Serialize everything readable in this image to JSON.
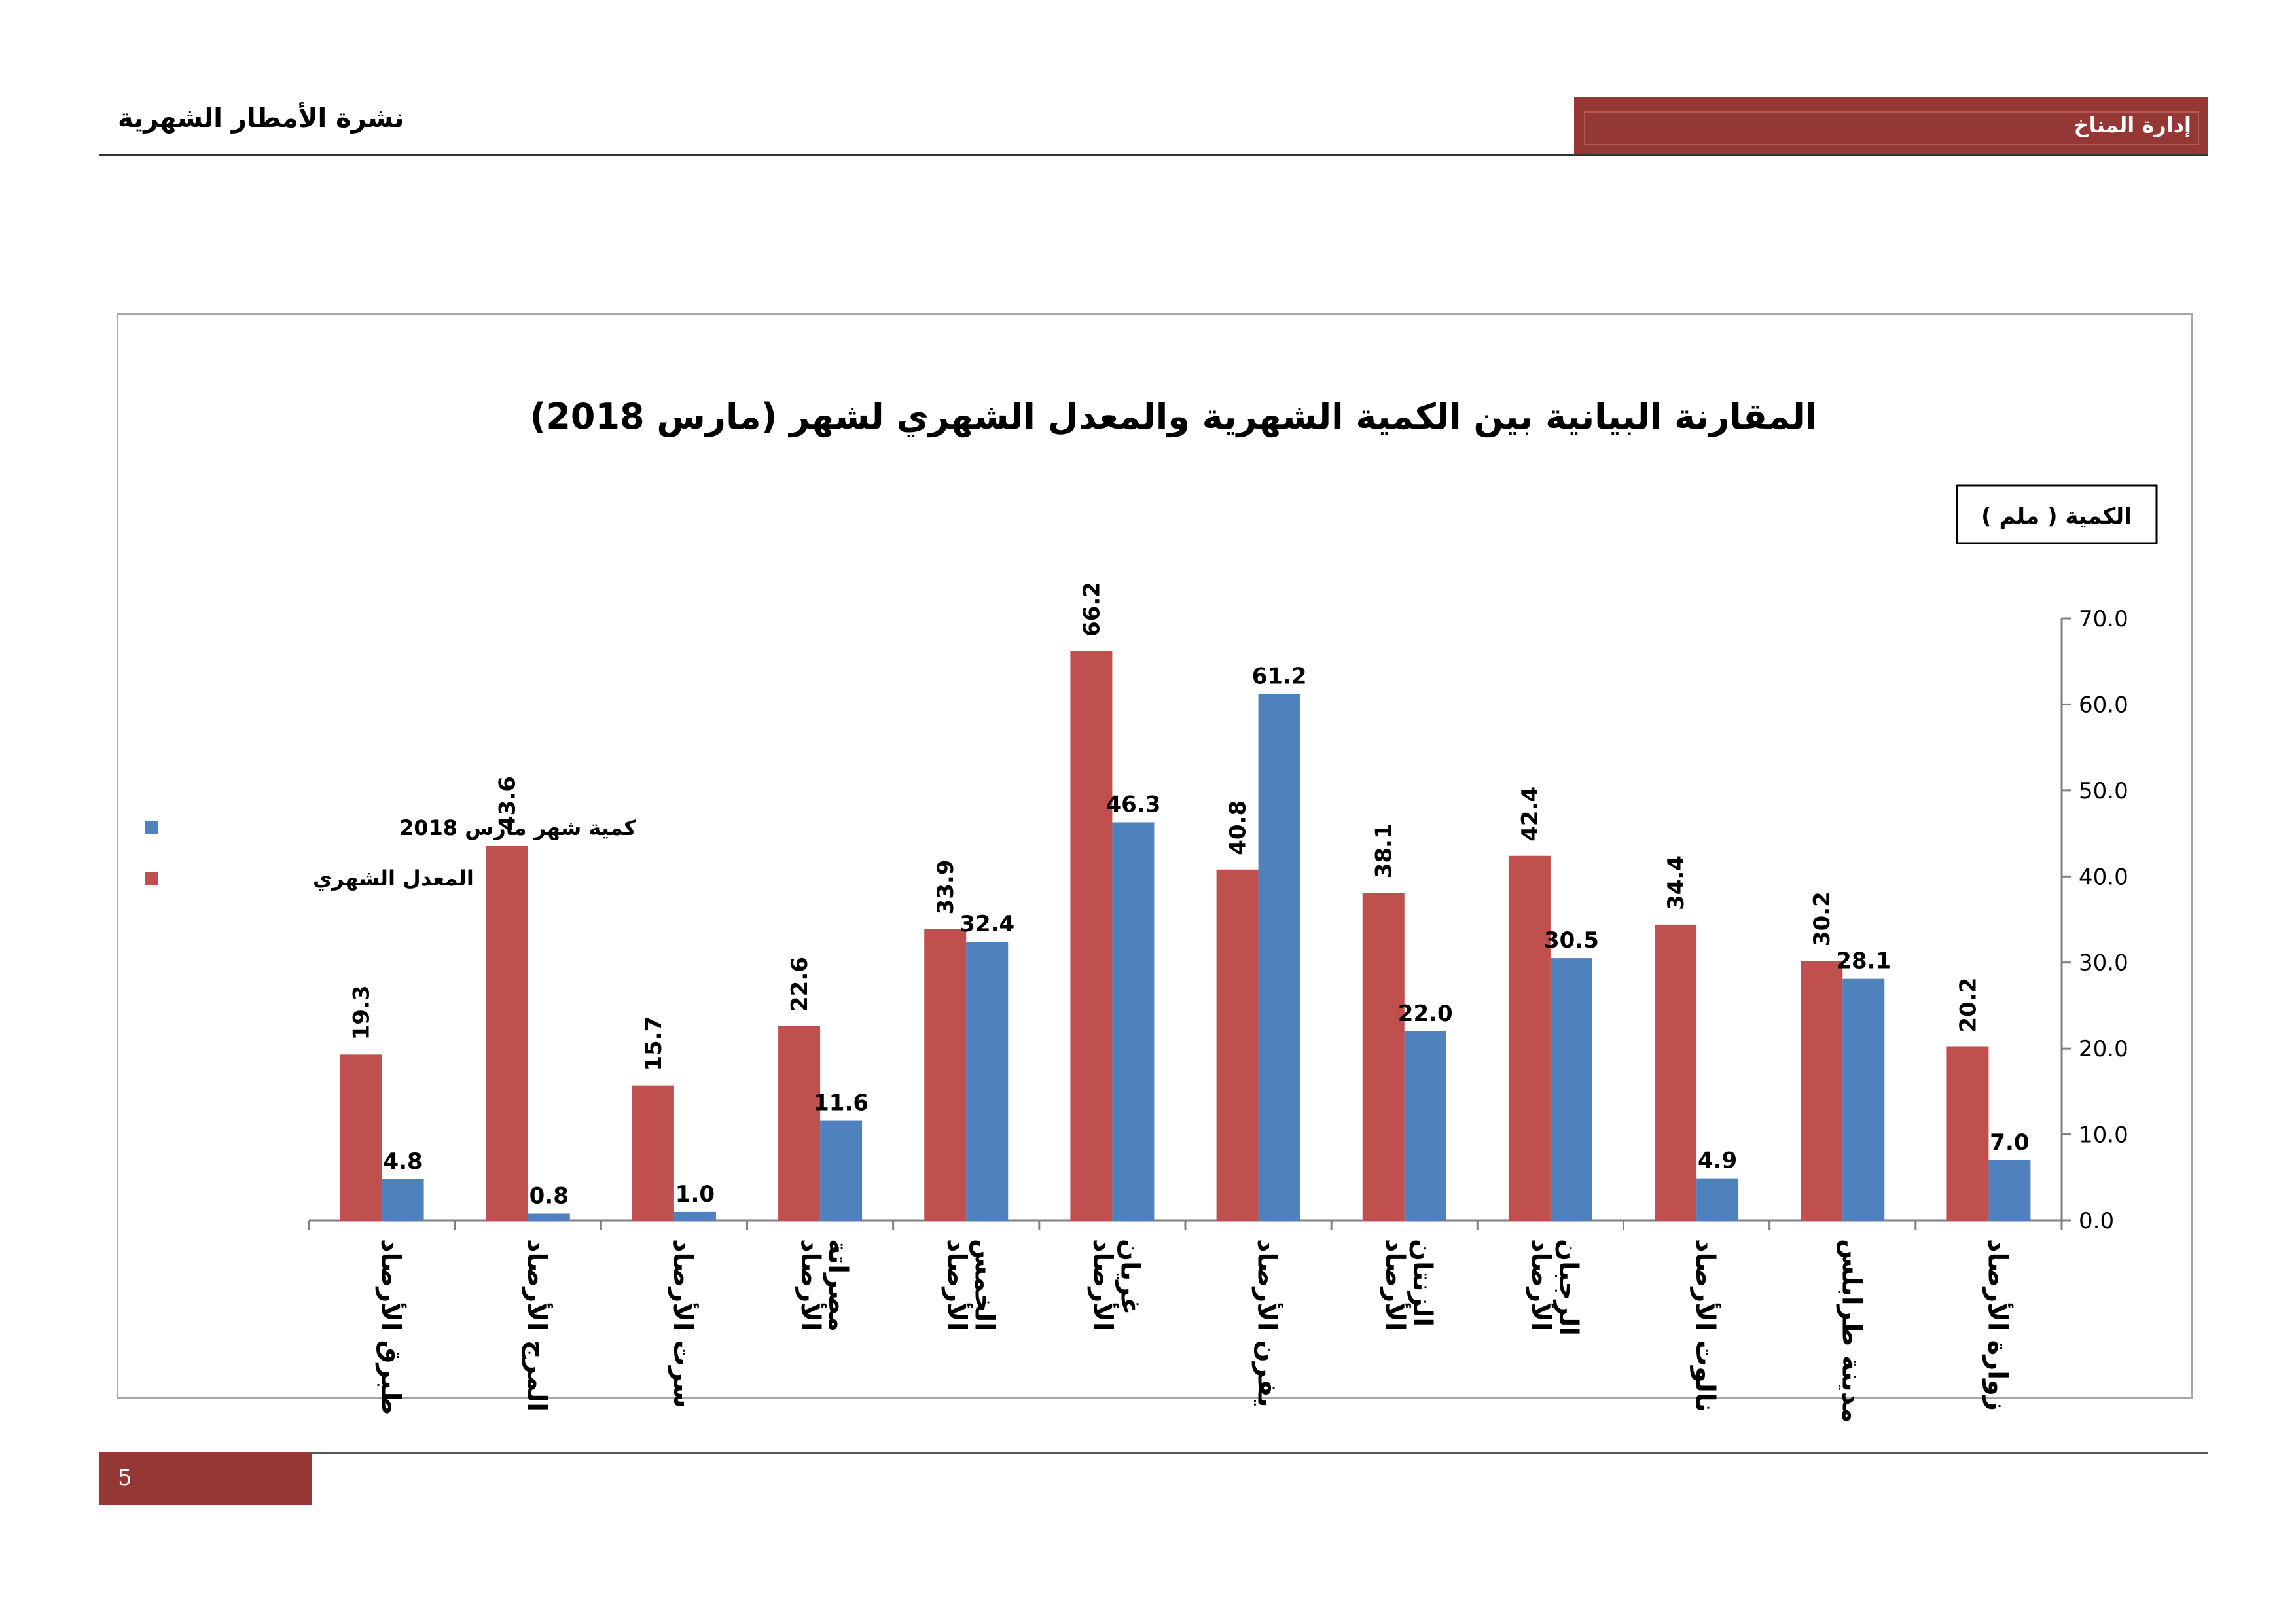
{
  "header": {
    "left_title": "نشرة الأمطار الشهرية",
    "right_title": "إدارة المناخ",
    "accent_color": "#953735"
  },
  "footer": {
    "page_number": "5"
  },
  "chart_data": {
    "type": "bar",
    "title": "المقارنة البيانية بين الكمية الشهرية والمعدل الشهري لشهر (مارس 2018)",
    "ylabel": "الكمية ( ملم )",
    "xlabel": "",
    "ylim": [
      0,
      70
    ],
    "yticks": [
      "0.0",
      "10.0",
      "20.0",
      "30.0",
      "40.0",
      "50.0",
      "60.0",
      "70.0"
    ],
    "y_axis_side": "right",
    "legend_position": "left",
    "grid": false,
    "categories": [
      [
        "طبرق الأرصاد"
      ],
      [
        "المرج الأرصاد"
      ],
      [
        "سرت الأرصاد"
      ],
      [
        "مصراتة",
        "الأرصاد"
      ],
      [
        "الخمس",
        "الأرصاد"
      ],
      [
        "غريان",
        "الأرصاد"
      ],
      [
        "يفرن الأرصاد"
      ],
      [
        "الزنتان",
        "الأرصاد"
      ],
      [
        "الرجبان",
        "الأرصاد"
      ],
      [
        "نالوت الأرصاد"
      ],
      [
        "مدينة طرابلس"
      ],
      [
        "زوارة الأرصاد"
      ]
    ],
    "series": [
      {
        "name": "المعدل الشهري",
        "color": "#c0504d",
        "values": [
          19.3,
          43.6,
          15.7,
          22.6,
          33.9,
          66.2,
          40.8,
          38.1,
          42.4,
          34.4,
          30.2,
          20.2
        ],
        "labels": [
          "19.3",
          "43.6",
          "15.7",
          "22.6",
          "33.9",
          "66.2",
          "40.8",
          "38.1",
          "42.4",
          "34.4",
          "30.2",
          "20.2"
        ]
      },
      {
        "name": "كمية  شهر مارس 2018",
        "color": "#4f81bd",
        "values": [
          4.8,
          0.8,
          1.0,
          11.6,
          32.4,
          46.3,
          61.2,
          22.0,
          30.5,
          4.9,
          28.1,
          7.0
        ],
        "labels": [
          "4.8",
          "0.8",
          "1.0",
          "11.6",
          "32.4",
          "46.3",
          "61.2",
          "22.0",
          "30.5",
          "4.9",
          "28.1",
          "7.0"
        ]
      }
    ]
  }
}
